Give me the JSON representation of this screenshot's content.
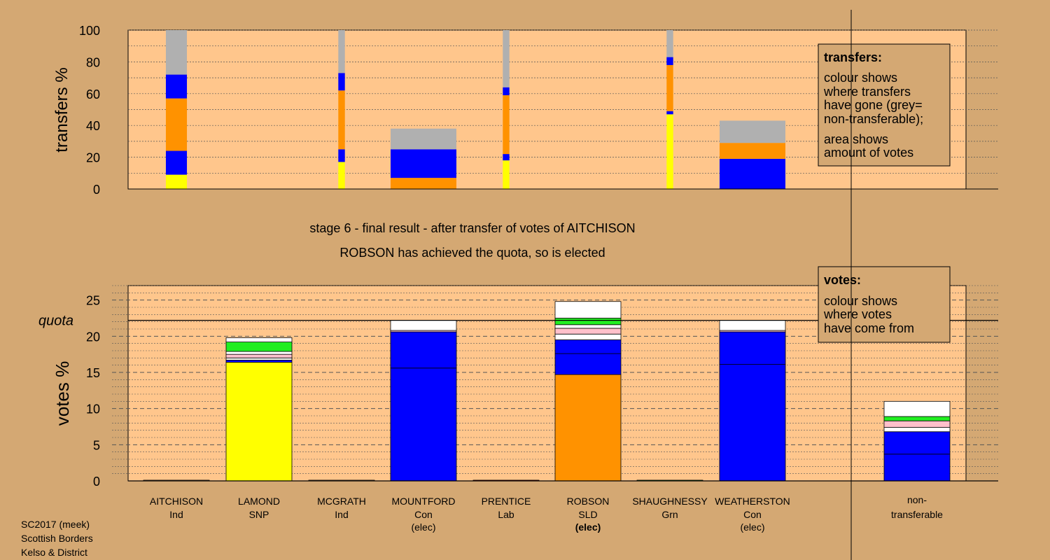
{
  "colors": {
    "background": "#d4a873",
    "plot_bg": "#ffc68c",
    "ind": "#ffc68c",
    "snp": "#ffff00",
    "con": "#0000ff",
    "lab": "#ff0000",
    "sld": "#ff9200",
    "grn": "#22ee22",
    "nontransferable": "#b0b0b0",
    "pink": "#ffc0cb",
    "white": "#ffffff"
  },
  "chart_data": [
    {
      "type": "bar",
      "subtype": "stacked-width-scaled",
      "ylabel": "transfers %",
      "ylim": [
        0,
        100
      ],
      "yticks": [
        0,
        20,
        40,
        60,
        80,
        100
      ],
      "grid": true,
      "categories": [
        "AITCHISON",
        "LAMOND",
        "MCGRATH",
        "MOUNTFORD",
        "PRENTICE",
        "ROBSON",
        "SHAUGHNESSY",
        "WEATHERSTON"
      ],
      "bars": [
        {
          "candidate": "AITCHISON",
          "width_rel": 0.32,
          "segments": [
            {
              "color": "snp",
              "value": 9
            },
            {
              "color": "con",
              "value": 15
            },
            {
              "color": "sld",
              "value": 33
            },
            {
              "color": "con",
              "value": 15
            },
            {
              "color": "nontransferable",
              "value": 28
            }
          ]
        },
        {
          "candidate": "MCGRATH",
          "width_rel": 0.1,
          "segments": [
            {
              "color": "snp",
              "value": 17
            },
            {
              "color": "con",
              "value": 8
            },
            {
              "color": "sld",
              "value": 37
            },
            {
              "color": "con",
              "value": 11
            },
            {
              "color": "nontransferable",
              "value": 27
            }
          ]
        },
        {
          "candidate": "MOUNTFORD",
          "width_rel": 1.0,
          "segments": [
            {
              "color": "sld",
              "value": 7
            },
            {
              "color": "con",
              "value": 18
            },
            {
              "color": "nontransferable",
              "value": 13
            }
          ]
        },
        {
          "candidate": "PRENTICE",
          "width_rel": 0.1,
          "segments": [
            {
              "color": "snp",
              "value": 18
            },
            {
              "color": "con",
              "value": 4
            },
            {
              "color": "sld",
              "value": 37
            },
            {
              "color": "con",
              "value": 5
            },
            {
              "color": "nontransferable",
              "value": 36
            }
          ]
        },
        {
          "candidate": "SHAUGHNESSY",
          "width_rel": 0.1,
          "segments": [
            {
              "color": "snp",
              "value": 47
            },
            {
              "color": "con",
              "value": 2
            },
            {
              "color": "sld",
              "value": 29
            },
            {
              "color": "con",
              "value": 5
            },
            {
              "color": "nontransferable",
              "value": 17
            }
          ]
        },
        {
          "candidate": "WEATHERSTON",
          "width_rel": 1.0,
          "segments": [
            {
              "color": "con",
              "value": 19
            },
            {
              "color": "sld",
              "value": 10
            },
            {
              "color": "nontransferable",
              "value": 14
            }
          ]
        }
      ],
      "legend": {
        "title": "transfers:",
        "lines": [
          "colour shows",
          "where transfers",
          "have gone (grey=",
          "non-transferable);",
          "area shows",
          "amount of votes"
        ]
      }
    },
    {
      "type": "bar",
      "subtype": "stacked",
      "ylabel": "votes %",
      "ylim": [
        0,
        27
      ],
      "yticks": [
        0,
        5,
        10,
        15,
        20,
        25
      ],
      "grid": true,
      "quota": {
        "label": "quota",
        "value": 22.2
      },
      "categories": [
        "AITCHISON",
        "LAMOND",
        "MCGRATH",
        "MOUNTFORD",
        "PRENTICE",
        "ROBSON",
        "SHAUGHNESSY",
        "WEATHERSTON",
        "non-transferable"
      ],
      "bars": [
        {
          "candidate": "AITCHISON",
          "segments": [
            {
              "color": "ind",
              "value": 0.1
            }
          ]
        },
        {
          "candidate": "LAMOND",
          "segments": [
            {
              "color": "snp",
              "value": 16.4
            },
            {
              "color": "con",
              "value": 0.3
            },
            {
              "color": "white",
              "value": 0.3
            },
            {
              "color": "pink",
              "value": 0.5
            },
            {
              "color": "white",
              "value": 0.4
            },
            {
              "color": "grn",
              "value": 1.3
            },
            {
              "color": "white",
              "value": 0.6
            }
          ]
        },
        {
          "candidate": "MCGRATH",
          "segments": [
            {
              "color": "ind",
              "value": 0.1
            }
          ]
        },
        {
          "candidate": "MOUNTFORD",
          "segments": [
            {
              "color": "con",
              "value": 15.6
            },
            {
              "color": "con",
              "value": 5.0
            },
            {
              "color": "pink",
              "value": 0.2
            },
            {
              "color": "white",
              "value": 1.4
            }
          ]
        },
        {
          "candidate": "PRENTICE",
          "segments": [
            {
              "color": "lab",
              "value": 0.1
            }
          ]
        },
        {
          "candidate": "ROBSON",
          "segments": [
            {
              "color": "sld",
              "value": 14.7
            },
            {
              "color": "con",
              "value": 2.9
            },
            {
              "color": "con",
              "value": 1.9
            },
            {
              "color": "white",
              "value": 0.8
            },
            {
              "color": "pink",
              "value": 0.8
            },
            {
              "color": "white",
              "value": 0.5
            },
            {
              "color": "grn",
              "value": 0.9
            },
            {
              "color": "white",
              "value": 2.3
            }
          ]
        },
        {
          "candidate": "SHAUGHNESSY",
          "segments": [
            {
              "color": "grn",
              "value": 0.1
            }
          ]
        },
        {
          "candidate": "WEATHERSTON",
          "segments": [
            {
              "color": "con",
              "value": 16.1
            },
            {
              "color": "con",
              "value": 4.5
            },
            {
              "color": "pink",
              "value": 0.2
            },
            {
              "color": "white",
              "value": 1.4
            }
          ]
        },
        {
          "candidate": "non-transferable",
          "segments": [
            {
              "color": "con",
              "value": 3.7
            },
            {
              "color": "con",
              "value": 3.1
            },
            {
              "color": "white",
              "value": 0.6
            },
            {
              "color": "pink",
              "value": 0.9
            },
            {
              "color": "grn",
              "value": 0.6
            },
            {
              "color": "white",
              "value": 2.1
            }
          ]
        }
      ],
      "legend": {
        "title": "votes:",
        "lines": [
          "colour shows",
          "where votes",
          "have come from"
        ]
      }
    }
  ],
  "stage_title": "stage 6 - final result - after transfer of votes of AITCHISON",
  "stage_subtitle": "ROBSON has achieved the quota, so is elected",
  "candidates": [
    {
      "name": "AITCHISON",
      "party": "Ind",
      "status": ""
    },
    {
      "name": "LAMOND",
      "party": "SNP",
      "status": ""
    },
    {
      "name": "MCGRATH",
      "party": "Ind",
      "status": ""
    },
    {
      "name": "MOUNTFORD",
      "party": "Con",
      "status": "(elec)"
    },
    {
      "name": "PRENTICE",
      "party": "Lab",
      "status": ""
    },
    {
      "name": "ROBSON",
      "party": "SLD",
      "status": "(elec)"
    },
    {
      "name": "SHAUGHNESSY",
      "party": "Grn",
      "status": ""
    },
    {
      "name": "WEATHERSTON",
      "party": "Con",
      "status": "(elec)"
    }
  ],
  "nontransferable_label": [
    "non-",
    "transferable"
  ],
  "footer": [
    "SC2017 (meek)",
    "Scottish Borders",
    "Kelso & District"
  ]
}
